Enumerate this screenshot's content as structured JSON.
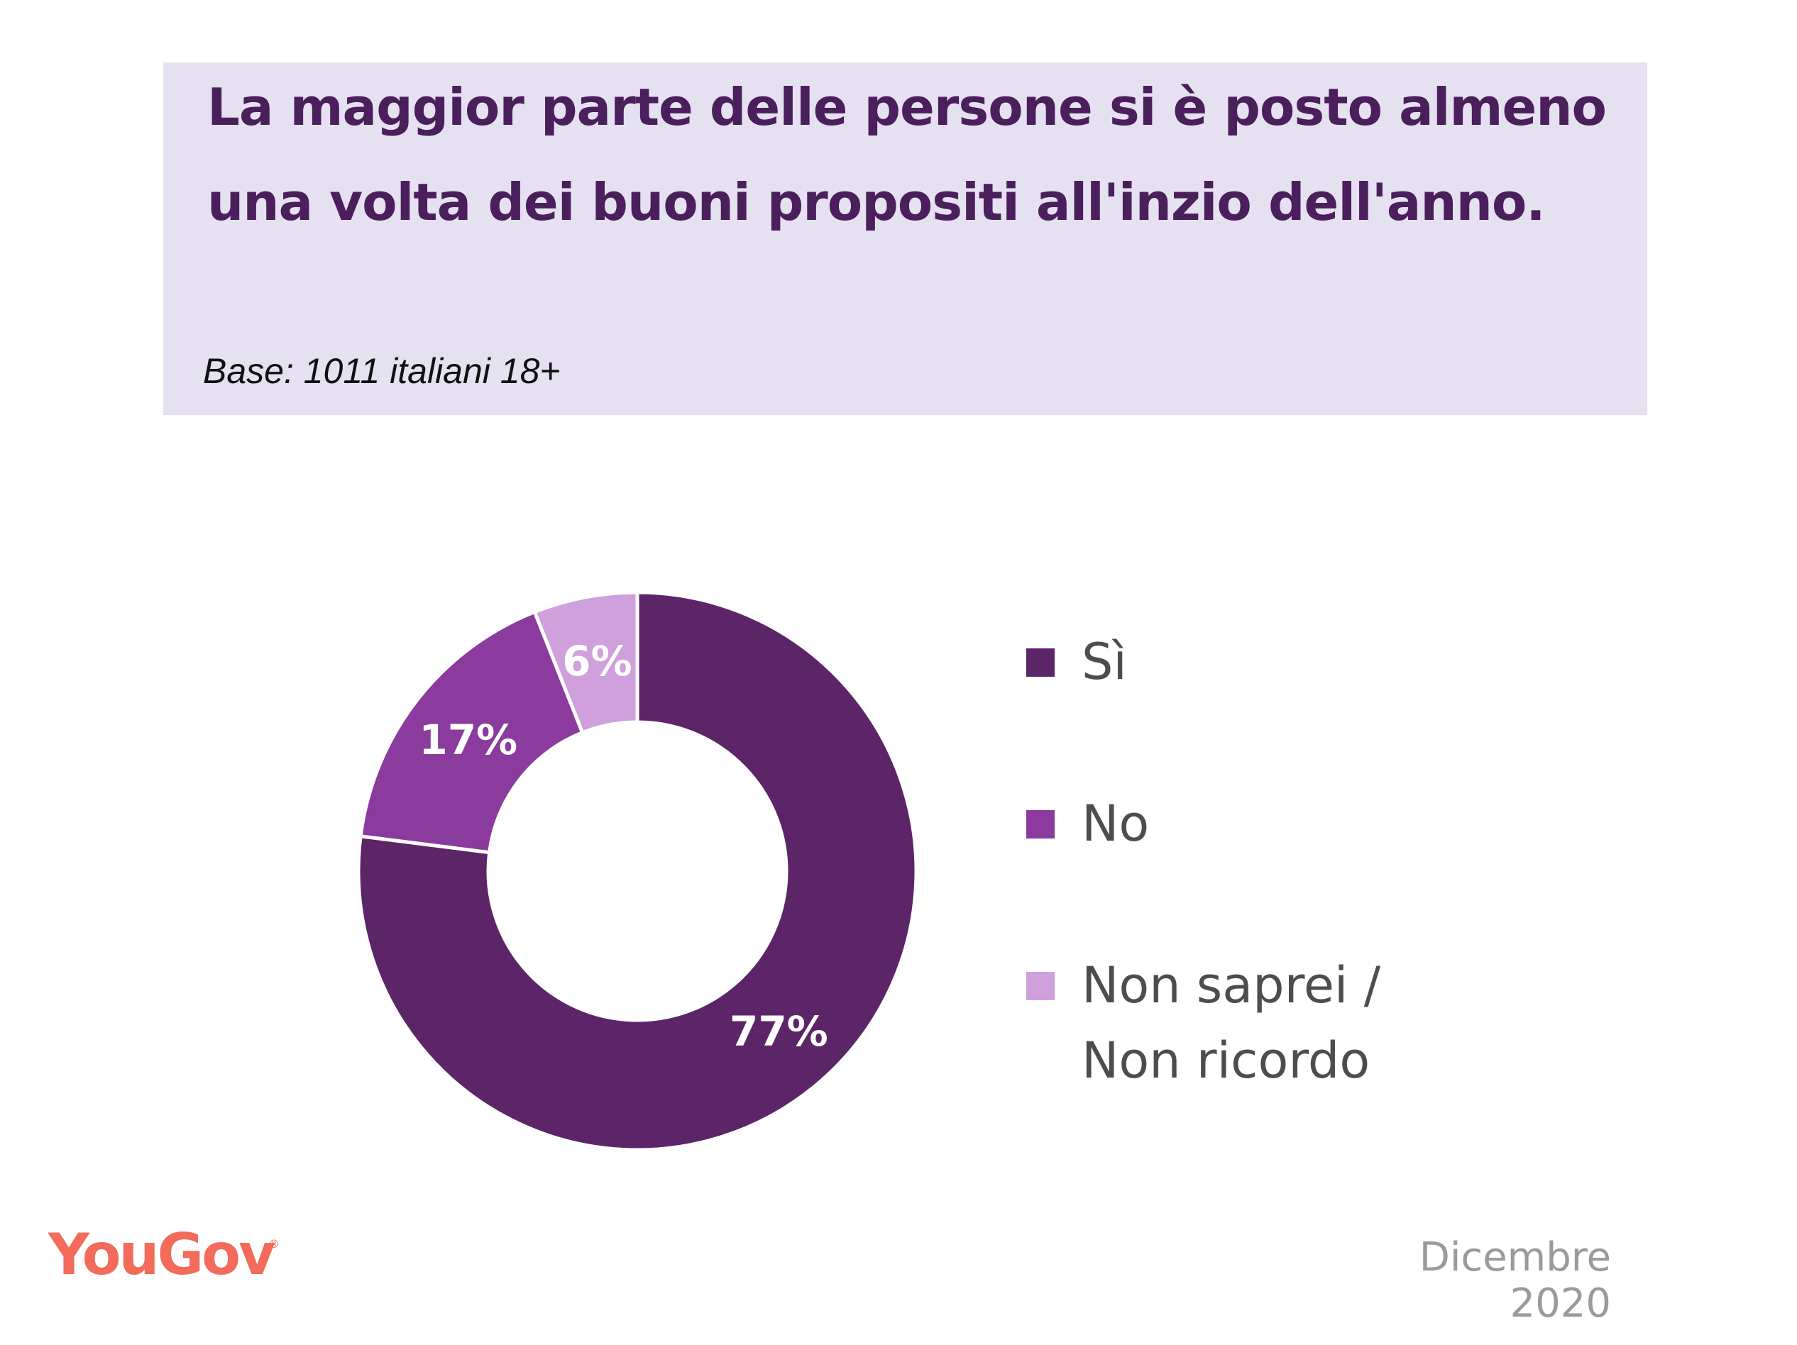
{
  "header": {
    "title": "La maggior parte delle persone si è posto almeno una volta dei buoni propositi all'inzio dell'anno.",
    "subtitle": "Base: 1011 italiani 18+"
  },
  "chart_data": {
    "type": "pie",
    "donut": true,
    "categories": [
      "Sì",
      "No",
      "Non saprei / Non ricordo"
    ],
    "values": [
      77,
      17,
      6
    ],
    "labels": [
      "77%",
      "17%",
      "6%"
    ],
    "colors": [
      "#5c2568",
      "#8b3a9e",
      "#cfa0dc"
    ],
    "legend_position": "right"
  },
  "legend": {
    "items": [
      {
        "label": "Sì",
        "color": "#5c2568"
      },
      {
        "label": "No",
        "color": "#8b3a9e"
      },
      {
        "label": "Non saprei / Non ricordo",
        "color": "#cfa0dc"
      }
    ]
  },
  "footer": {
    "brand": "YouGov",
    "brand_mark": "®",
    "date": "Dicembre 2020"
  }
}
